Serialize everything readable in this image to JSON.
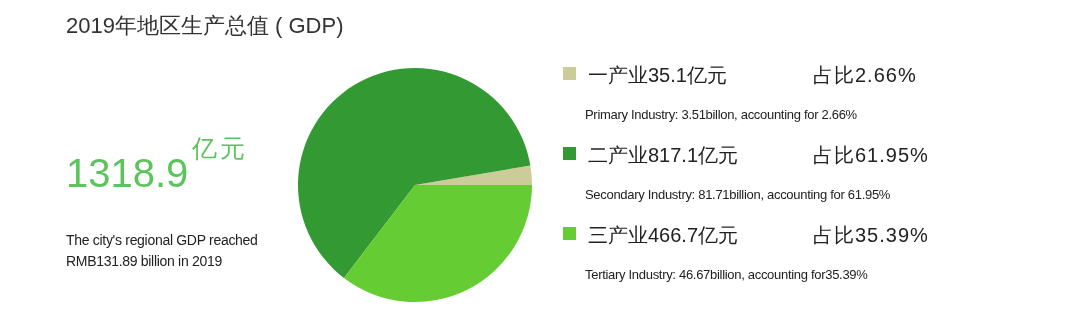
{
  "chart_data": {
    "type": "pie",
    "title": "2019年地区生产总值 ( GDP)",
    "categories": [
      "一产业35.1亿元",
      "二产业817.1亿元",
      "三产业466.7亿元"
    ],
    "values": [
      35.1,
      817.1,
      466.7
    ],
    "colors": [
      "#cccc99",
      "#339933",
      "#66cc33"
    ],
    "legend": "right",
    "annotations": [
      "占比2.66%",
      "Primary Industry: 3.51billon, accounting for 2.66%",
      "占比61.95%",
      "Secondary Industry: 81.71billion, accounting for 61.95%",
      "占比35.39%",
      "Tertiary Industry: 46.67billion, accounting for35.39%",
      "1318.9",
      "亿元",
      "The city's regional GDP reached",
      "RMB131.89 billion in 2019"
    ]
  }
}
